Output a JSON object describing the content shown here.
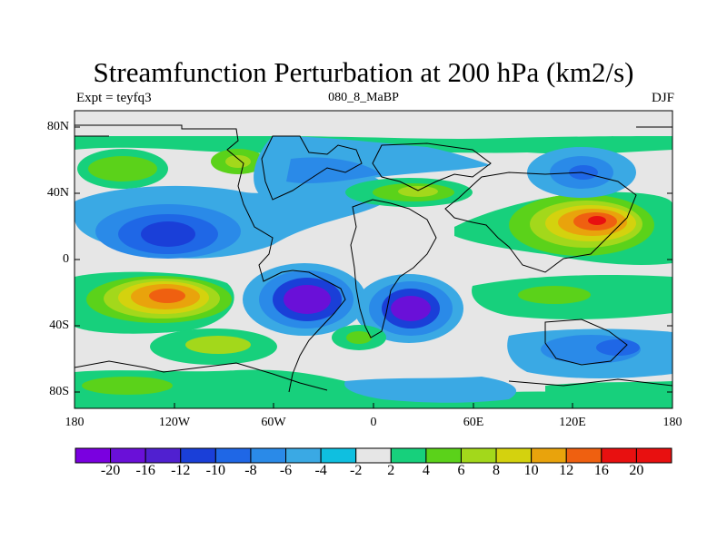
{
  "header": {
    "title": "Streamfunction Perturbation at 200 hPa (km2/s)",
    "experiment": "Expt = teyfq3",
    "case": "080_8_MaBP",
    "season": "DJF"
  },
  "axes": {
    "lat_labels": [
      "80N",
      "40N",
      "0",
      "40S",
      "80S"
    ],
    "lon_labels": [
      "180",
      "120W",
      "60W",
      "0",
      "60E",
      "120E",
      "180"
    ]
  },
  "colorbar": {
    "labels": [
      "-20",
      "-16",
      "-12",
      "-10",
      "-8",
      "-6",
      "-4",
      "-2",
      "2",
      "4",
      "6",
      "8",
      "10",
      "12",
      "16",
      "20"
    ],
    "colors": [
      "#7a00e0",
      "#6a10d8",
      "#5020d0",
      "#1a3fd8",
      "#1f67e6",
      "#2a8ae8",
      "#3aa9e4",
      "#0fbfe0",
      "#e6e6e6",
      "#17d07c",
      "#5bd21a",
      "#a3d81b",
      "#d4d20e",
      "#e9a30c",
      "#ef6010",
      "#e81010"
    ]
  }
}
